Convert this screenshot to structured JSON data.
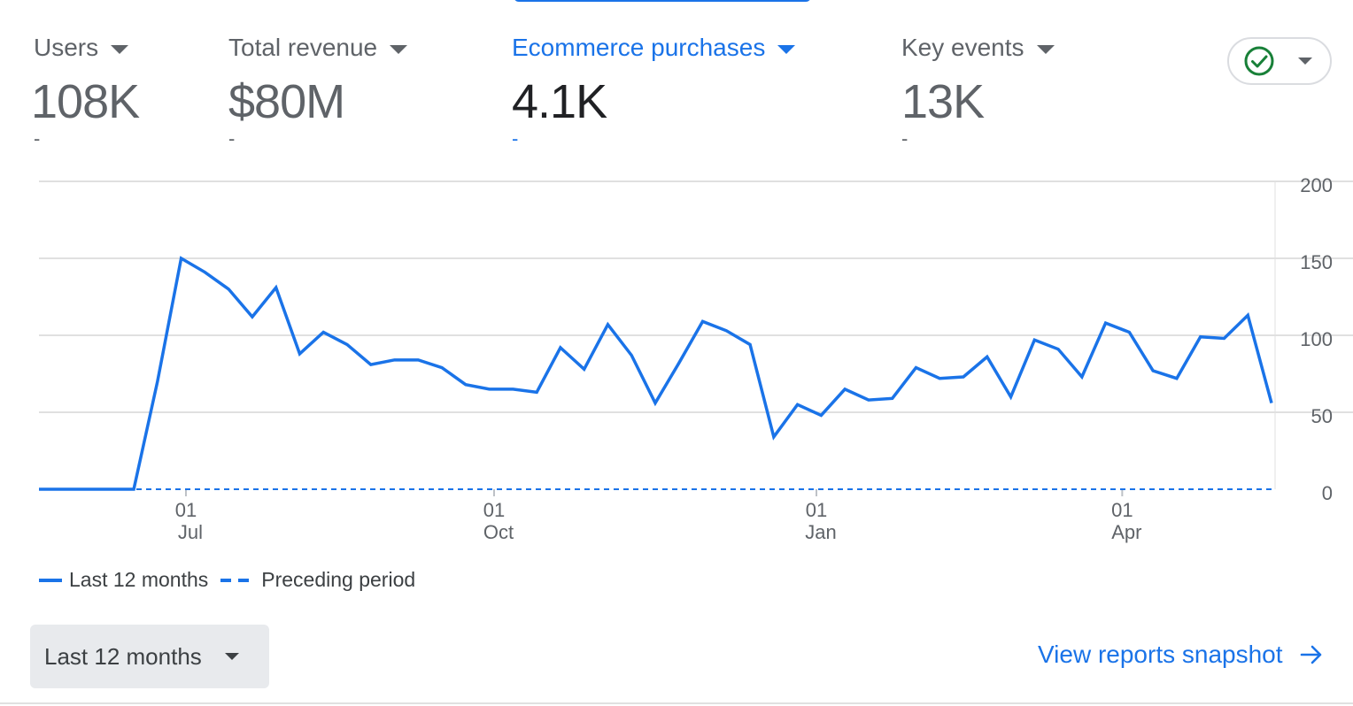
{
  "metrics": [
    {
      "label": "Users",
      "value": "108K",
      "change": "-",
      "selected": false
    },
    {
      "label": "Total revenue",
      "value": "$80M",
      "change": "-",
      "selected": false
    },
    {
      "label": "Ecommerce purchases",
      "value": "4.1K",
      "change": "-",
      "selected": true
    },
    {
      "label": "Key events",
      "value": "13K",
      "change": "-",
      "selected": false
    }
  ],
  "status_pill": {
    "icon": "check-circle-icon",
    "icon_color": "#188038"
  },
  "legend": {
    "current": "Last 12 months",
    "previous": "Preceding period"
  },
  "range_selector": {
    "label": "Last 12 months"
  },
  "view_link": {
    "label": "View reports snapshot",
    "icon": "arrow-right-icon"
  },
  "colors": {
    "accent": "#1a73e8",
    "text_muted": "#5f6368",
    "grid": "#e0e0e0"
  },
  "chart_data": {
    "type": "line",
    "x_ticks": [
      {
        "day": "01",
        "month": "Jul"
      },
      {
        "day": "01",
        "month": "Oct"
      },
      {
        "day": "01",
        "month": "Jan"
      },
      {
        "day": "01",
        "month": "Apr"
      }
    ],
    "y_ticks": [
      0,
      50,
      100,
      150,
      200
    ],
    "ylim": [
      0,
      200
    ],
    "grid": true,
    "legend_position": "bottom-left",
    "series": [
      {
        "name": "Last 12 months",
        "style": "solid",
        "values": [
          0,
          0,
          0,
          0,
          0,
          70,
          150,
          141,
          130,
          112,
          131,
          88,
          102,
          94,
          81,
          84,
          84,
          79,
          68,
          65,
          65,
          63,
          92,
          78,
          107,
          87,
          56,
          82,
          109,
          103,
          94,
          34,
          55,
          48,
          65,
          58,
          59,
          79,
          72,
          73,
          86,
          60,
          97,
          91,
          73,
          108,
          102,
          77,
          72,
          99,
          98,
          113,
          56
        ]
      },
      {
        "name": "Preceding period",
        "style": "dashed",
        "values": [
          0,
          0,
          0,
          0,
          0,
          0,
          0,
          0,
          0,
          0,
          0,
          0,
          0,
          0,
          0,
          0,
          0,
          0,
          0,
          0,
          0,
          0,
          0,
          0,
          0,
          0,
          0,
          0,
          0,
          0,
          0,
          0,
          0,
          0,
          0,
          0,
          0,
          0,
          0,
          0,
          0,
          0,
          0,
          0,
          0,
          0,
          0,
          0,
          0,
          0,
          0,
          0,
          0
        ]
      }
    ]
  }
}
